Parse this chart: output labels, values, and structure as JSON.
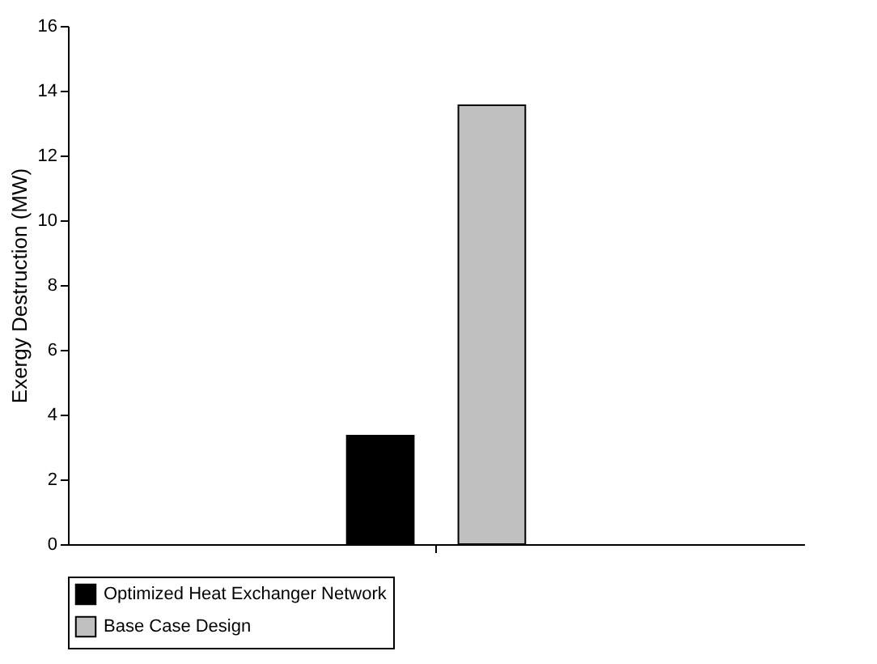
{
  "chart_data": {
    "type": "bar",
    "ylabel": "Exergy Destruction (MW)",
    "categories": [
      null
    ],
    "series": [
      {
        "name": "Optimized Heat Exchanger Network",
        "color": "#000000",
        "values": [
          3.35
        ]
      },
      {
        "name": "Base Case Design",
        "color": "#c0c0c0",
        "values": [
          13.55
        ]
      }
    ],
    "ylim": [
      0,
      16
    ],
    "yticks": [
      0,
      2,
      4,
      6,
      8,
      10,
      12,
      14,
      16
    ],
    "grid": false,
    "legend": "bottom",
    "tick_labels": "y"
  }
}
